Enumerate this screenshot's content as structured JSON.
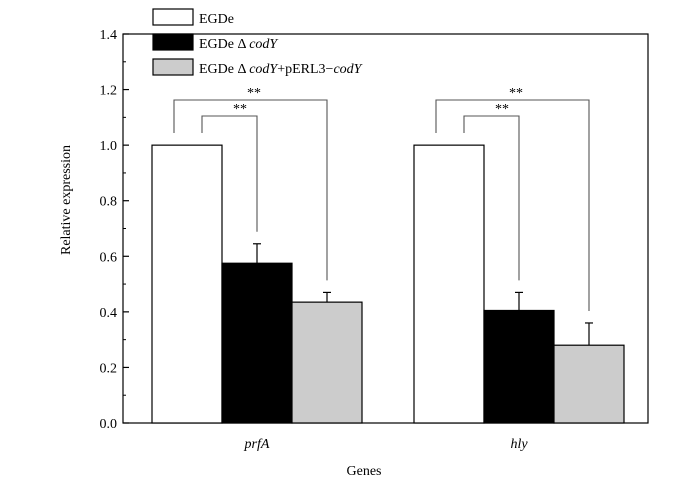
{
  "chart_data": {
    "type": "bar",
    "xlabel": "Genes",
    "ylabel": "Relative expression",
    "ylim": [
      0,
      1.4
    ],
    "yticks": [
      "0.0",
      "0.2",
      "0.4",
      "0.6",
      "0.8",
      "1.0",
      "1.2",
      "1.4"
    ],
    "categories": [
      "prfA",
      "hly"
    ],
    "legend_position": "top-left",
    "series": [
      {
        "name_parts": [
          "EGDe",
          "",
          ""
        ],
        "color": "#ffffff",
        "values": [
          1.0,
          1.0
        ],
        "errors": [
          0,
          0
        ]
      },
      {
        "name_parts": [
          "EGDe Δ ",
          "codY",
          ""
        ],
        "color": "#000000",
        "values": [
          0.575,
          0.405
        ],
        "errors": [
          0.07,
          0.065
        ]
      },
      {
        "name_parts": [
          "EGDe Δ ",
          "codY",
          "+pERL3−",
          "codY"
        ],
        "color": "#cccccc",
        "values": [
          0.435,
          0.28
        ],
        "errors": [
          0.035,
          0.08
        ]
      }
    ],
    "significance": [
      {
        "category": 0,
        "from_series": 0,
        "to_series": 1,
        "label": "**"
      },
      {
        "category": 0,
        "from_series": 0,
        "to_series": 2,
        "label": "**"
      },
      {
        "category": 1,
        "from_series": 0,
        "to_series": 1,
        "label": "**"
      },
      {
        "category": 1,
        "from_series": 0,
        "to_series": 2,
        "label": "**"
      }
    ]
  }
}
